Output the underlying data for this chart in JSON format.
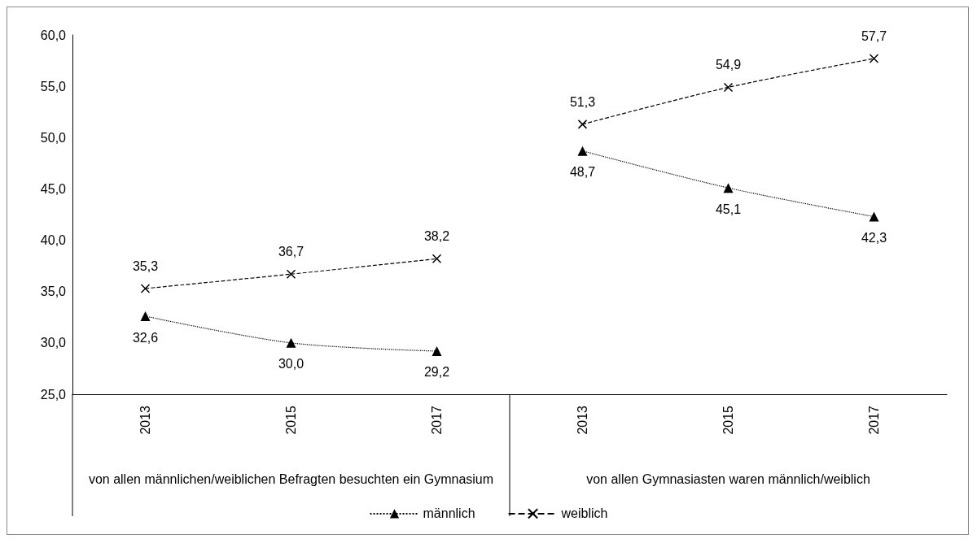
{
  "chart_data": {
    "type": "line",
    "categories": [
      "2013",
      "2015",
      "2017",
      "2013",
      "2015",
      "2017"
    ],
    "annotations": [
      "von allen männlichen/weiblichen Befragten besuchten ein Gymnasium",
      "von allen Gymnasiasten waren männlich/weiblich"
    ],
    "series": [
      {
        "name": "männlich",
        "color": "#000000",
        "marker": "triangle",
        "line_style": "dotted",
        "values": [
          32.6,
          30.0,
          29.2,
          48.7,
          45.1,
          42.3
        ],
        "value_labels": [
          "32,6",
          "30,0",
          "29,2",
          "48,7",
          "45,1",
          "42,3"
        ]
      },
      {
        "name": "weiblich",
        "color": "#000000",
        "marker": "cross",
        "line_style": "dashed",
        "values": [
          35.3,
          36.7,
          38.2,
          51.3,
          54.9,
          57.7
        ],
        "value_labels": [
          "35,3",
          "36,7",
          "38,2",
          "51,3",
          "54,9",
          "57,7"
        ]
      }
    ],
    "ylim": [
      25,
      60
    ],
    "yticks": [
      {
        "value": 25,
        "label": "25,0"
      },
      {
        "value": 30,
        "label": "30,0"
      },
      {
        "value": 35,
        "label": "35,0"
      },
      {
        "value": 40,
        "label": "40,0"
      },
      {
        "value": 45,
        "label": "45,0"
      },
      {
        "value": 50,
        "label": "50,0"
      },
      {
        "value": 55,
        "label": "55,0"
      },
      {
        "value": 60,
        "label": "60,0"
      }
    ],
    "grid": false,
    "legend": "bottom"
  }
}
